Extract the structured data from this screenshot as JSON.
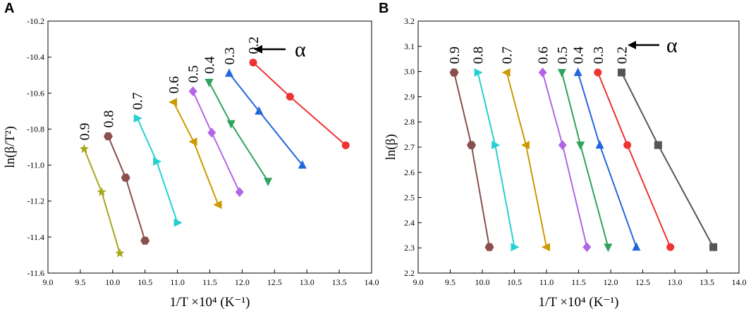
{
  "chart_data": [
    {
      "panel": "A",
      "type": "line",
      "xlabel": "1/T ×10⁴ (K⁻¹)",
      "ylabel": "ln(β/T²)",
      "xlim": [
        9.0,
        14.0
      ],
      "ylim": [
        -11.6,
        -10.2
      ],
      "xticks": [
        9.0,
        9.5,
        10.0,
        10.5,
        11.0,
        11.5,
        12.0,
        12.5,
        13.0,
        13.5,
        14.0
      ],
      "xtick_labels": [
        "9.0",
        "9.5",
        "10.0",
        "10.5",
        "11.0",
        "11.5",
        "12.0",
        "12.5",
        "13.0",
        "13.5",
        "14.0"
      ],
      "yticks": [
        -11.6,
        -11.4,
        -11.2,
        -11.0,
        -10.8,
        -10.6,
        -10.4,
        -10.2
      ],
      "ytick_labels": [
        "-11.6",
        "-11.4",
        "-11.2",
        "-11.0",
        "-10.8",
        "-10.6",
        "-10.4",
        "-10.2"
      ],
      "alpha_label": "α",
      "grid": false,
      "series": [
        {
          "name": "0.9",
          "color": "#a6a61a",
          "marker": "star",
          "x": [
            9.56,
            9.83,
            10.11
          ],
          "y": [
            -10.91,
            -11.15,
            -11.49
          ]
        },
        {
          "name": "0.8",
          "color": "#8a4f4f",
          "marker": "hexagon",
          "x": [
            9.93,
            10.2,
            10.5
          ],
          "y": [
            -10.84,
            -11.07,
            -11.42
          ]
        },
        {
          "name": "0.7",
          "color": "#26d0d0",
          "marker": "triangle-right",
          "x": [
            10.38,
            10.68,
            11.0
          ],
          "y": [
            -10.74,
            -10.98,
            -11.32
          ]
        },
        {
          "name": "0.6",
          "color": "#cc9900",
          "marker": "triangle-left",
          "x": [
            10.94,
            11.25,
            11.63
          ],
          "y": [
            -10.65,
            -10.87,
            -11.22
          ]
        },
        {
          "name": "0.5",
          "color": "#b266e6",
          "marker": "diamond",
          "x": [
            11.24,
            11.53,
            11.96
          ],
          "y": [
            -10.59,
            -10.82,
            -11.15
          ]
        },
        {
          "name": "0.4",
          "color": "#2ea35c",
          "marker": "triangle-down",
          "x": [
            11.49,
            11.83,
            12.4
          ],
          "y": [
            -10.54,
            -10.77,
            -11.09
          ]
        },
        {
          "name": "0.3",
          "color": "#2266dd",
          "marker": "triangle-up",
          "x": [
            11.8,
            12.26,
            12.93
          ],
          "y": [
            -10.49,
            -10.7,
            -11.0
          ]
        },
        {
          "name": "0.2",
          "color": "#ee3333",
          "marker": "circle",
          "x": [
            12.17,
            12.74,
            13.6
          ],
          "y": [
            -10.43,
            -10.62,
            -10.89
          ]
        }
      ]
    },
    {
      "panel": "B",
      "type": "line",
      "xlabel": "1/T ×10⁴ (K⁻¹)",
      "ylabel": "ln(β)",
      "xlim": [
        9.0,
        14.0
      ],
      "ylim": [
        2.2,
        3.2
      ],
      "xticks": [
        9.0,
        9.5,
        10.0,
        10.5,
        11.0,
        11.5,
        12.0,
        12.5,
        13.0,
        13.5,
        14.0
      ],
      "xtick_labels": [
        "9.0",
        "9.5",
        "10.0",
        "10.5",
        "11.0",
        "11.5",
        "12.0",
        "12.5",
        "13.0",
        "13.5",
        "14.0"
      ],
      "yticks": [
        2.2,
        2.3,
        2.4,
        2.5,
        2.6,
        2.7,
        2.8,
        2.9,
        3.0,
        3.1,
        3.2
      ],
      "ytick_labels": [
        "2.2",
        "2.3",
        "2.4",
        "2.5",
        "2.6",
        "2.7",
        "2.8",
        "2.9",
        "3.0",
        "3.1",
        "3.2"
      ],
      "alpha_label": "α",
      "grid": false,
      "series": [
        {
          "name": "0.9",
          "color": "#8a4f4f",
          "marker": "hexagon",
          "x": [
            9.56,
            9.83,
            10.11
          ],
          "y": [
            2.996,
            2.708,
            2.303
          ]
        },
        {
          "name": "0.8",
          "color": "#26d0d0",
          "marker": "triangle-right",
          "x": [
            9.93,
            10.2,
            10.5
          ],
          "y": [
            2.996,
            2.708,
            2.303
          ]
        },
        {
          "name": "0.7",
          "color": "#cc9900",
          "marker": "triangle-left",
          "x": [
            10.38,
            10.68,
            11.0
          ],
          "y": [
            2.996,
            2.708,
            2.303
          ]
        },
        {
          "name": "0.6",
          "color": "#b266e6",
          "marker": "diamond",
          "x": [
            10.94,
            11.25,
            11.63
          ],
          "y": [
            2.996,
            2.708,
            2.303
          ]
        },
        {
          "name": "0.5",
          "color": "#2ea35c",
          "marker": "triangle-down",
          "x": [
            11.24,
            11.53,
            11.96
          ],
          "y": [
            2.996,
            2.708,
            2.303
          ]
        },
        {
          "name": "0.4",
          "color": "#2266dd",
          "marker": "triangle-up",
          "x": [
            11.49,
            11.83,
            12.4
          ],
          "y": [
            2.996,
            2.708,
            2.303
          ]
        },
        {
          "name": "0.3",
          "color": "#ee3333",
          "marker": "circle",
          "x": [
            11.8,
            12.26,
            12.93
          ],
          "y": [
            2.996,
            2.708,
            2.303
          ]
        },
        {
          "name": "0.2",
          "color": "#555555",
          "marker": "square",
          "x": [
            12.17,
            12.74,
            13.6
          ],
          "y": [
            2.996,
            2.708,
            2.303
          ]
        }
      ]
    }
  ]
}
